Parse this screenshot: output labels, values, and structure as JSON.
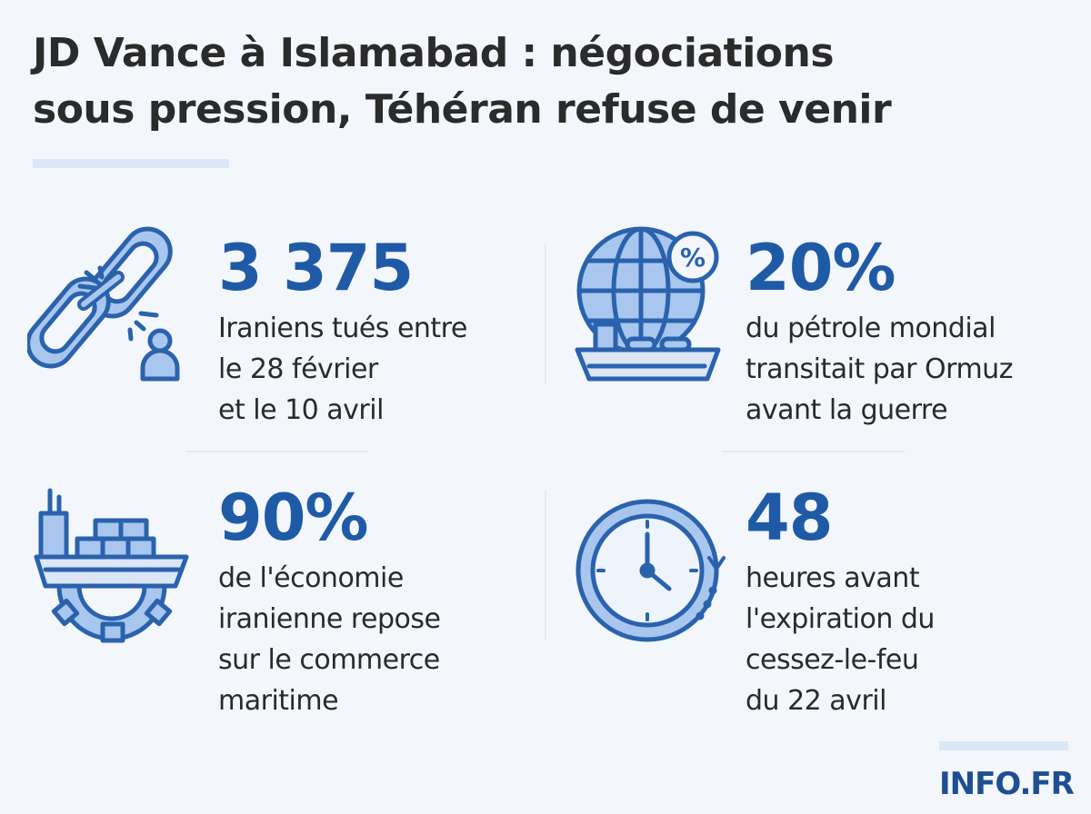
{
  "title": {
    "line1": "JD Vance à Islamabad : négociations",
    "line2": "sous pression, Téhéran refuse de venir"
  },
  "stats": [
    {
      "icon": "broken-chain-person-icon",
      "value": "3 375",
      "lines": [
        "Iraniens tués entre",
        "le 28 février",
        "et le 10 avril"
      ]
    },
    {
      "icon": "globe-percent-tanker-icon",
      "value": "20%",
      "lines": [
        "du pétrole mondial",
        "transitait par Ormuz",
        "avant la guerre"
      ]
    },
    {
      "icon": "cargo-ship-gear-icon",
      "value": "90%",
      "lines": [
        "de l'économie",
        "iranienne repose",
        "sur le commerce",
        "maritime"
      ]
    },
    {
      "icon": "clock-countdown-icon",
      "value": "48",
      "lines": [
        "heures avant",
        "l'expiration du",
        "cessez-le-feu",
        "du 22 avril"
      ]
    }
  ],
  "logo": "INFO.FR",
  "colors": {
    "accent": "#1f5aa6",
    "icon_fill": "#a9c7ee",
    "background": "#f3f7fb",
    "text": "#2a2a2a"
  }
}
